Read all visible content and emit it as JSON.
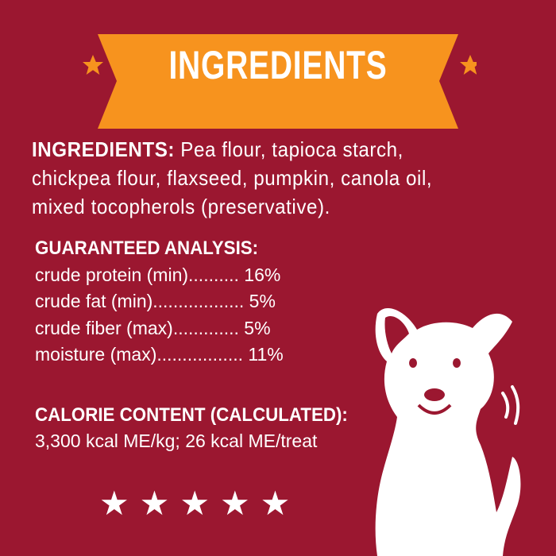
{
  "banner": {
    "title": "INGREDIENTS",
    "color": "#f7931e",
    "star_color": "#f7931e"
  },
  "ingredients": {
    "label": "INGREDIENTS:",
    "text": "Pea flour, tapioca starch, chickpea flour, flaxseed, pumpkin, canola oil, mixed tocopherols (preservative)."
  },
  "analysis": {
    "heading": "GUARANTEED ANALYSIS:",
    "rows": [
      {
        "text": "crude protein (min).......... 16%"
      },
      {
        "text": "crude fat (min).................. 5%"
      },
      {
        "text": "crude fiber (max)............. 5%"
      },
      {
        "text": "moisture (max)................. 11%"
      }
    ]
  },
  "calorie": {
    "heading": "CALORIE CONTENT (CALCULATED):",
    "text": "3,300 kcal ME/kg; 26 kcal ME/treat"
  },
  "rating": {
    "stars": 5,
    "glyph": "★"
  },
  "background": "#9b1730"
}
